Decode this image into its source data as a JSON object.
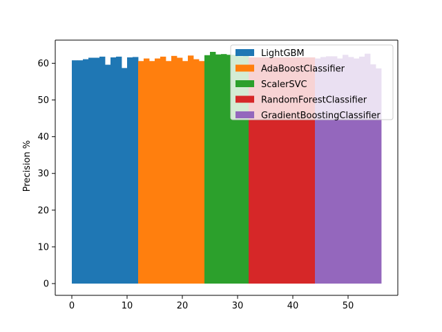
{
  "chart_data": {
    "type": "bar",
    "title": "",
    "xlabel": "",
    "ylabel": "Precision %",
    "xlim": [
      -3,
      59
    ],
    "ylim": [
      -3.2,
      66.3
    ],
    "xticks": [
      0,
      10,
      20,
      30,
      40,
      50
    ],
    "yticks": [
      0,
      10,
      20,
      30,
      40,
      50,
      60
    ],
    "grid": false,
    "legend_position": "top-right",
    "series": [
      {
        "name": "LightGBM",
        "color": "#1f77b4",
        "x_start": 0,
        "values": [
          60.8,
          60.8,
          61.1,
          61.5,
          61.5,
          61.8,
          59.6,
          61.6,
          61.8,
          58.7,
          61.6,
          61.7
        ]
      },
      {
        "name": "AdaBoostClassifier",
        "color": "#ff7f0e",
        "x_start": 12,
        "values": [
          60.6,
          61.3,
          60.6,
          61.3,
          61.8,
          60.6,
          62.0,
          61.5,
          60.6,
          62.1,
          61.1,
          60.6
        ]
      },
      {
        "name": "ScalerSVC",
        "color": "#2ca02c",
        "x_start": 24,
        "values": [
          62.2,
          63.1,
          62.4,
          62.5,
          62.3,
          62.3,
          61.9,
          62.2
        ]
      },
      {
        "name": "RandomForestClassifier",
        "color": "#d62728",
        "x_start": 32,
        "values": [
          61.6,
          61.6,
          61.6,
          61.6,
          61.6,
          61.6,
          61.6,
          61.6,
          61.6,
          61.6,
          61.6,
          61.6
        ]
      },
      {
        "name": "GradientBoostingClassifier",
        "color": "#9467bd",
        "x_start": 44,
        "values": [
          61.3,
          61.7,
          61.9,
          61.9,
          61.3,
          62.3,
          61.7,
          61.3,
          61.8,
          62.6,
          59.7,
          58.6
        ]
      }
    ]
  }
}
